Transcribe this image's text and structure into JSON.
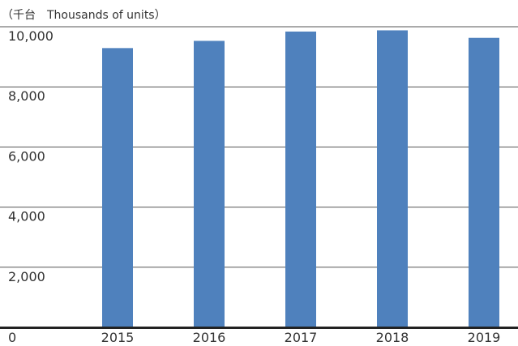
{
  "chart_data": {
    "type": "bar",
    "unit_label": "（千台　Thousands of units）",
    "categories": [
      "2015",
      "2016",
      "2017",
      "2018",
      "2019"
    ],
    "values": [
      9290,
      9530,
      9840,
      9880,
      9630
    ],
    "ylim": [
      0,
      10000
    ],
    "y_ticks": [
      0,
      2000,
      4000,
      6000,
      8000,
      10000
    ],
    "y_tick_labels": [
      "0",
      "2,000",
      "4,000",
      "6,000",
      "8,000",
      "10,000"
    ],
    "grid": true,
    "bar_color": "#4f81bd"
  }
}
